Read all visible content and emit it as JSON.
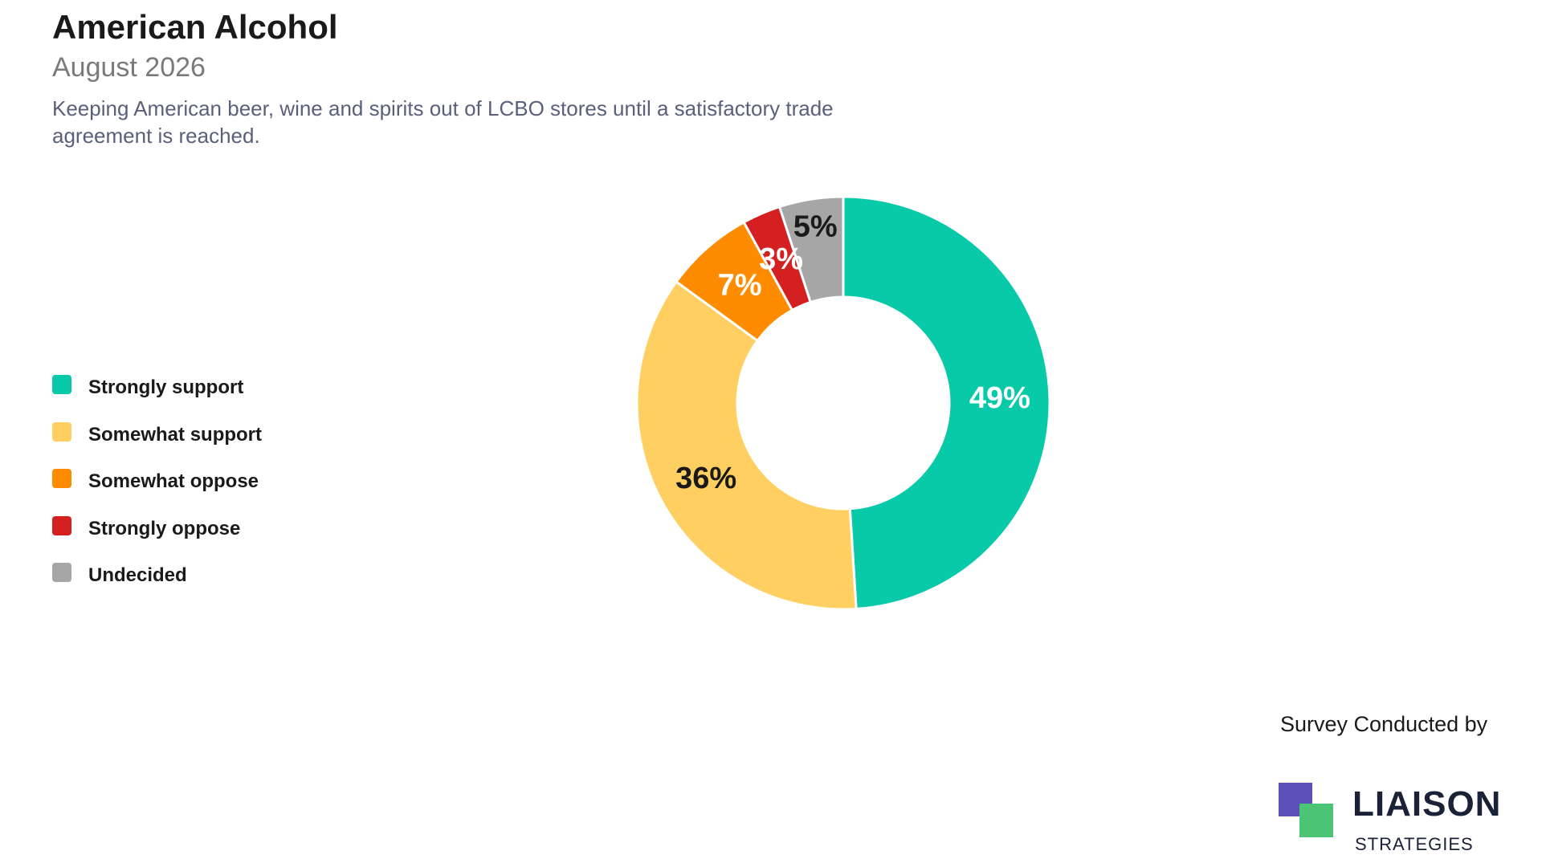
{
  "header": {
    "title": "American Alcohol",
    "subtitle": "August 2026",
    "question": "Keeping American beer, wine and spirits out of LCBO stores until a satisfactory trade agreement is reached."
  },
  "chart_data": {
    "type": "pie",
    "donut": true,
    "title": "American Alcohol",
    "subtitle": "August 2026",
    "legend_position": "left",
    "categories": [
      "Strongly support",
      "Somewhat support",
      "Somewhat oppose",
      "Strongly oppose",
      "Undecided"
    ],
    "values": [
      49,
      36,
      7,
      3,
      5
    ],
    "labels": [
      "49%",
      "36%",
      "7%",
      "3%",
      "5%"
    ],
    "colors": [
      "#08c9a8",
      "#ffd061",
      "#ff8c00",
      "#d42020",
      "#a6a6a6"
    ],
    "label_colors": [
      "#ffffff",
      "#1a1a1a",
      "#ffffff",
      "#ffffff",
      "#1a1a1a"
    ]
  },
  "footer": {
    "survey_by": "Survey Conducted by",
    "logo_name": "LIAISON",
    "logo_tagline": "STRATEGIES"
  }
}
